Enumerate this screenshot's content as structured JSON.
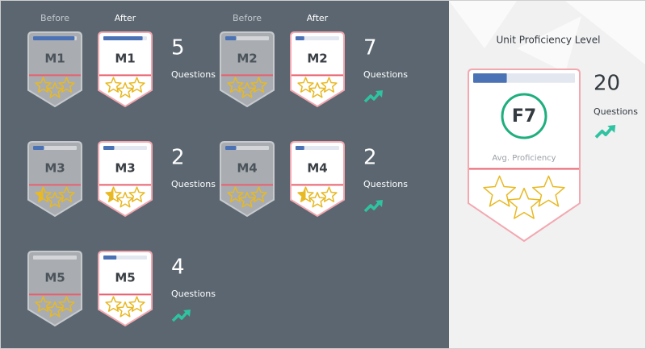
{
  "columns": [
    {
      "before": "Before",
      "after": "After"
    },
    {
      "before": "Before",
      "after": "After"
    }
  ],
  "modules": [
    {
      "before": {
        "label": "M1",
        "progress": 0.95,
        "stars": [
          0,
          0,
          0
        ]
      },
      "after": {
        "label": "M1",
        "progress": 0.9,
        "stars": [
          0,
          0,
          0
        ]
      },
      "questions": 5,
      "questions_label": "Questions",
      "improved": false
    },
    {
      "before": {
        "label": "M2",
        "progress": 0.25,
        "stars": [
          0,
          0,
          0
        ]
      },
      "after": {
        "label": "M2",
        "progress": 0.2,
        "stars": [
          0,
          0,
          0
        ]
      },
      "questions": 7,
      "questions_label": "Questions",
      "improved": true
    },
    {
      "before": {
        "label": "M3",
        "progress": 0.25,
        "stars": [
          0.5,
          0,
          0
        ]
      },
      "after": {
        "label": "M3",
        "progress": 0.25,
        "stars": [
          0.5,
          0,
          0
        ]
      },
      "questions": 2,
      "questions_label": "Questions",
      "improved": false
    },
    {
      "before": {
        "label": "M4",
        "progress": 0.25,
        "stars": [
          0,
          0,
          0
        ]
      },
      "after": {
        "label": "M4",
        "progress": 0.2,
        "stars": [
          0.5,
          0,
          0
        ]
      },
      "questions": 2,
      "questions_label": "Questions",
      "improved": true
    },
    {
      "before": {
        "label": "M5",
        "progress": 0,
        "stars": [
          0,
          0,
          0
        ]
      },
      "after": {
        "label": "M5",
        "progress": 0.3,
        "stars": [
          0,
          0,
          0
        ]
      },
      "questions": 4,
      "questions_label": "Questions",
      "improved": true
    }
  ],
  "unit": {
    "title": "Unit Proficiency Level",
    "grade": "F7",
    "subtitle": "Avg. Proficiency",
    "progress": 0.33,
    "stars": [
      0,
      0,
      0
    ],
    "questions": 20,
    "questions_label": "Questions",
    "improved": true
  }
}
